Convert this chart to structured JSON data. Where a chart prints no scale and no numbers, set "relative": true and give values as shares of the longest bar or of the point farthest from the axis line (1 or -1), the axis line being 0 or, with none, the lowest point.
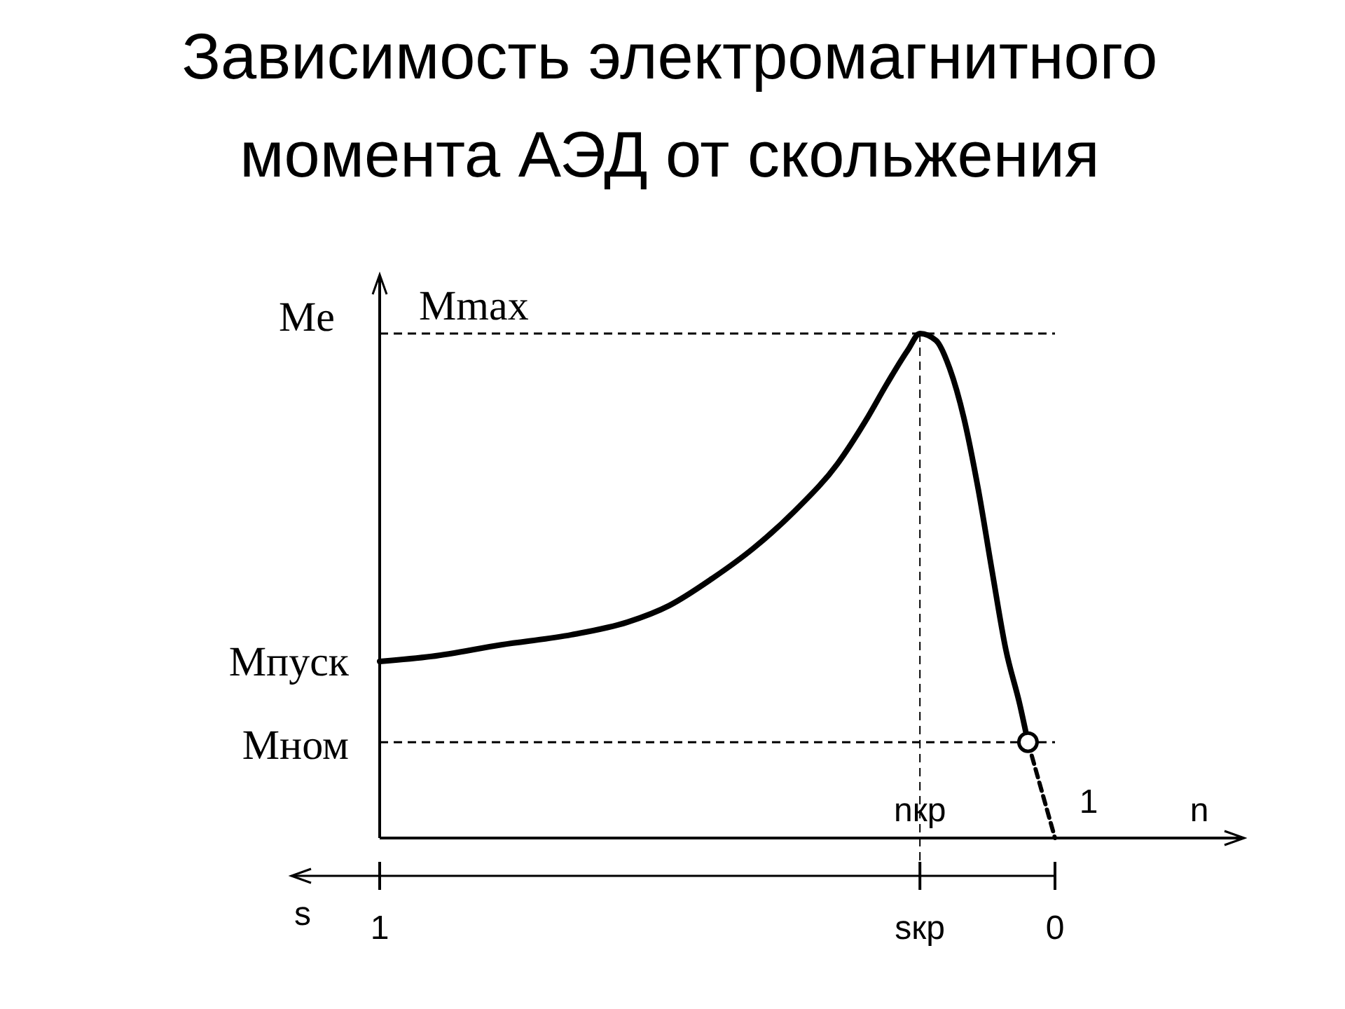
{
  "chart_data": {
    "type": "line",
    "title": "Зависимость электромагнитного момента АЭД от скольжения",
    "relative": true,
    "ylabel": "Me",
    "xlabel": "s",
    "xlim": [
      1,
      0
    ],
    "xticks": [
      1,
      {
        "value": 0.2,
        "label": "sкр"
      },
      0
    ],
    "series": [
      {
        "color": "#000000",
        "line_style": "solid",
        "x": [
          1,
          0.923,
          0.82,
          0.716,
          0.633,
          0.571,
          0.508,
          0.446,
          0.384,
          0.322,
          0.28,
          0.249,
          0.218,
          0.2,
          0.176,
          0.156,
          0.135,
          0.114,
          0.093,
          0.073,
          0.052,
          0.04
        ],
        "values": [
          0.35,
          0.36,
          0.383,
          0.403,
          0.428,
          0.461,
          0.514,
          0.575,
          0.65,
          0.742,
          0.828,
          0.9,
          0.967,
          1,
          0.986,
          0.931,
          0.833,
          0.694,
          0.528,
          0.375,
          0.264,
          0.19
        ]
      },
      {
        "color": "#000000",
        "line_style": "dashed",
        "x": [
          0.04,
          0
        ],
        "values": [
          0.19,
          0
        ]
      },
      {
        "type": "scatter",
        "color": "#000000",
        "marker": "circle",
        "x": [
          0.04
        ],
        "values": [
          0.19
        ]
      }
    ],
    "ref_lines": [
      {
        "axis": "y",
        "value": 1,
        "label": "Mmax",
        "line_style": "dashed"
      },
      {
        "axis": "y",
        "value": 0.19,
        "label": "Мном",
        "line_style": "dashed"
      },
      {
        "axis": "x",
        "value": 0.2,
        "line_style": "dashed"
      }
    ],
    "annotations": [
      {
        "text": "Мпуск",
        "x": 1,
        "y": 0.35
      },
      {
        "text": "nкр",
        "x": 0.2,
        "y": 0
      },
      {
        "text": "1",
        "x": 0,
        "y": 0
      },
      "n"
    ]
  }
}
